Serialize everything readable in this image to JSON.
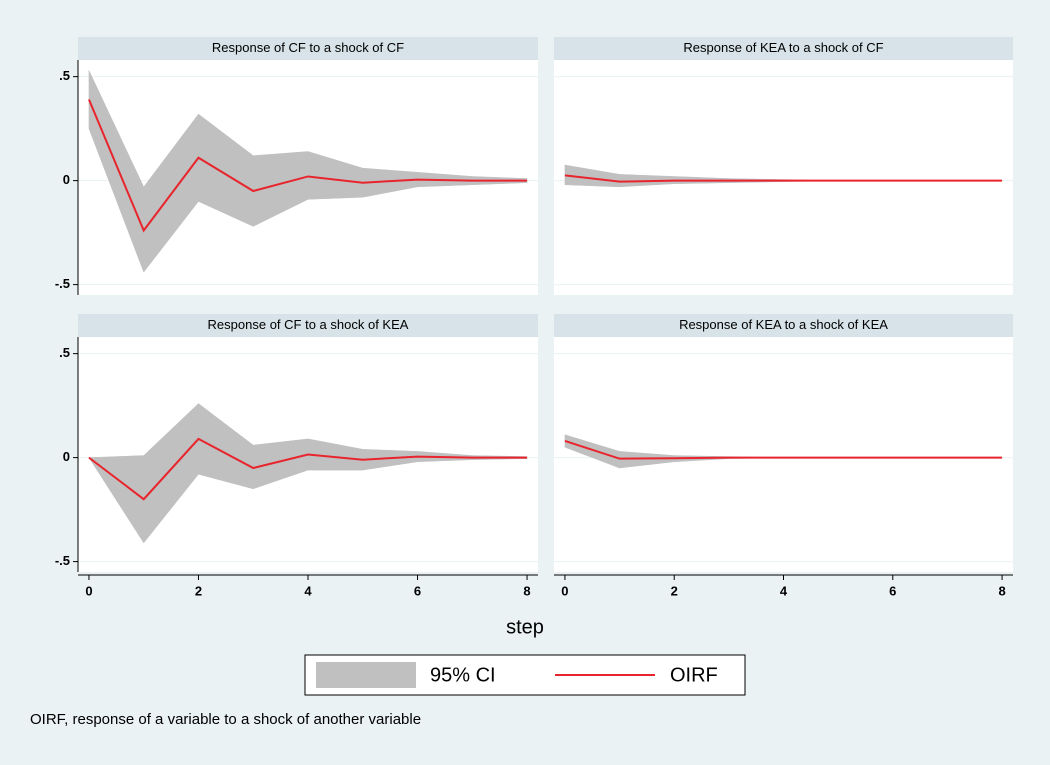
{
  "chart_data": [
    {
      "type": "line",
      "title": "Response of CF to a shock of CF",
      "x": [
        0,
        1,
        2,
        3,
        4,
        5,
        6,
        7,
        8
      ],
      "xlim": [
        -0.2,
        8.2
      ],
      "ylim": [
        -0.55,
        0.58
      ],
      "yticks": [
        {
          "value": -0.5,
          "label": "-.5"
        },
        0,
        {
          "value": 0.5,
          "label": ".5"
        }
      ],
      "series": [
        {
          "name": "95% CI",
          "color": "#c0c0c0",
          "lower": [
            0.25,
            -0.44,
            -0.1,
            -0.22,
            -0.09,
            -0.08,
            -0.03,
            -0.02,
            -0.01
          ],
          "upper": [
            0.53,
            -0.03,
            0.32,
            0.12,
            0.14,
            0.06,
            0.04,
            0.02,
            0.01
          ]
        },
        {
          "name": "OIRF",
          "color": "#e8242c",
          "values": [
            0.39,
            -0.24,
            0.11,
            -0.05,
            0.02,
            -0.01,
            0.005,
            0,
            0
          ]
        }
      ]
    },
    {
      "type": "line",
      "title": "Response of KEA to a shock of CF",
      "x": [
        0,
        1,
        2,
        3,
        4,
        5,
        6,
        7,
        8
      ],
      "xlim": [
        -0.2,
        8.2
      ],
      "ylim": [
        -0.55,
        0.58
      ],
      "yticks": [
        -0.5,
        0,
        0.5
      ],
      "series": [
        {
          "color": "#c0c0c0",
          "lower": [
            -0.02,
            -0.03,
            -0.015,
            -0.01,
            -0.005,
            0,
            0,
            0,
            0
          ],
          "upper": [
            0.075,
            0.03,
            0.02,
            0.01,
            0.005,
            0,
            0,
            0,
            0
          ]
        },
        {
          "color": "#e8242c",
          "values": [
            0.025,
            -0.005,
            0,
            0,
            0,
            0,
            0,
            0,
            0
          ]
        }
      ]
    },
    {
      "type": "line",
      "title": "Response of CF to a shock of KEA",
      "x": [
        0,
        1,
        2,
        3,
        4,
        5,
        6,
        7,
        8
      ],
      "xlim": [
        -0.2,
        8.2
      ],
      "ylim": [
        -0.55,
        0.58
      ],
      "xticks": [
        0,
        2,
        4,
        6,
        8
      ],
      "yticks": [
        {
          "value": -0.5,
          "label": "-.5"
        },
        0,
        {
          "value": 0.5,
          "label": ".5"
        }
      ],
      "series": [
        {
          "color": "#c0c0c0",
          "lower": [
            0,
            -0.41,
            -0.08,
            -0.15,
            -0.06,
            -0.06,
            -0.02,
            -0.01,
            -0.005
          ],
          "upper": [
            0,
            0.01,
            0.26,
            0.06,
            0.09,
            0.04,
            0.03,
            0.01,
            0.005
          ]
        },
        {
          "color": "#e8242c",
          "values": [
            0,
            -0.2,
            0.09,
            -0.05,
            0.015,
            -0.01,
            0.005,
            0,
            0
          ]
        }
      ]
    },
    {
      "type": "line",
      "title": "Response of KEA to a shock of KEA",
      "x": [
        0,
        1,
        2,
        3,
        4,
        5,
        6,
        7,
        8
      ],
      "xlim": [
        -0.2,
        8.2
      ],
      "ylim": [
        -0.55,
        0.58
      ],
      "xticks": [
        0,
        2,
        4,
        6,
        8
      ],
      "yticks": [
        -0.5,
        0,
        0.5
      ],
      "series": [
        {
          "color": "#c0c0c0",
          "lower": [
            0.05,
            -0.05,
            -0.02,
            -0.005,
            0,
            0,
            0,
            0,
            0
          ],
          "upper": [
            0.11,
            0.03,
            0.01,
            0.005,
            0,
            0,
            0,
            0,
            0
          ]
        },
        {
          "color": "#e8242c",
          "values": [
            0.08,
            -0.005,
            -0.003,
            0,
            0,
            0,
            0,
            0,
            0
          ]
        }
      ]
    }
  ],
  "figure": {
    "xlabel": "step",
    "note": "OIRF, response of a variable to a shock of another variable"
  }
}
